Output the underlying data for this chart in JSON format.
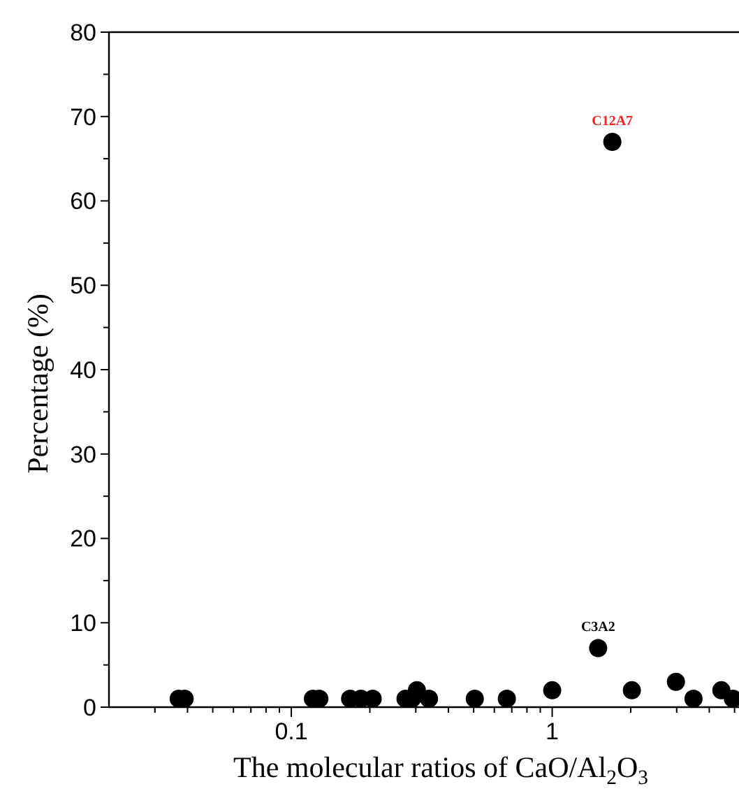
{
  "chart_data": {
    "type": "scatter",
    "xlabel": "The molecular ratios of CaO/Al$_{2}$O$_{3}$",
    "ylabel": "Percentage (%)",
    "log": "x",
    "marker": "circle",
    "grid": false,
    "x": [
      0.037,
      0.039,
      0.121,
      0.128,
      0.168,
      0.185,
      0.205,
      0.274,
      0.29,
      0.303,
      0.337,
      0.505,
      0.67,
      1.0,
      1.5,
      1.7,
      2.02,
      2.98,
      3.48,
      4.45,
      4.93
    ],
    "values": [
      1,
      1,
      1,
      1,
      1,
      1,
      1,
      1,
      1,
      2,
      1,
      1,
      1,
      2,
      7,
      67,
      2,
      3,
      1,
      2,
      1
    ],
    "color": "#000000",
    "xlim": [
      0.02,
      5.2
    ],
    "xticks": [
      {
        "value": 0.03,
        "label": null
      },
      {
        "value": 0.04,
        "label": null
      },
      {
        "value": 0.05,
        "label": null
      },
      {
        "value": 0.06,
        "label": null
      },
      {
        "value": 0.07,
        "label": null
      },
      {
        "value": 0.08,
        "label": null
      },
      {
        "value": 0.09,
        "label": null
      },
      0.1,
      {
        "value": 0.2,
        "label": null
      },
      {
        "value": 0.3,
        "label": null
      },
      {
        "value": 0.4,
        "label": null
      },
      {
        "value": 0.5,
        "label": null
      },
      {
        "value": 0.6,
        "label": null
      },
      {
        "value": 0.7,
        "label": null
      },
      {
        "value": 0.8,
        "label": null
      },
      {
        "value": 0.9,
        "label": null
      },
      1,
      {
        "value": 2,
        "label": null
      },
      {
        "value": 3,
        "label": null
      },
      {
        "value": 4,
        "label": null
      },
      {
        "value": 5,
        "label": null
      }
    ],
    "ylim": [
      0,
      80
    ],
    "yticks": [
      0,
      {
        "value": 5,
        "label": null
      },
      10,
      {
        "value": 15,
        "label": null
      },
      20,
      {
        "value": 25,
        "label": null
      },
      30,
      {
        "value": 35,
        "label": null
      },
      40,
      {
        "value": 45,
        "label": null
      },
      50,
      {
        "value": 55,
        "label": null
      },
      60,
      {
        "value": 65,
        "label": null
      },
      70,
      {
        "value": 75,
        "label": null
      },
      80
    ],
    "annotations": [
      {
        "text": "C12A7",
        "x": 1.7,
        "y": 67
      },
      {
        "text": "C3A2",
        "x": 1.5,
        "y": 7
      }
    ]
  }
}
